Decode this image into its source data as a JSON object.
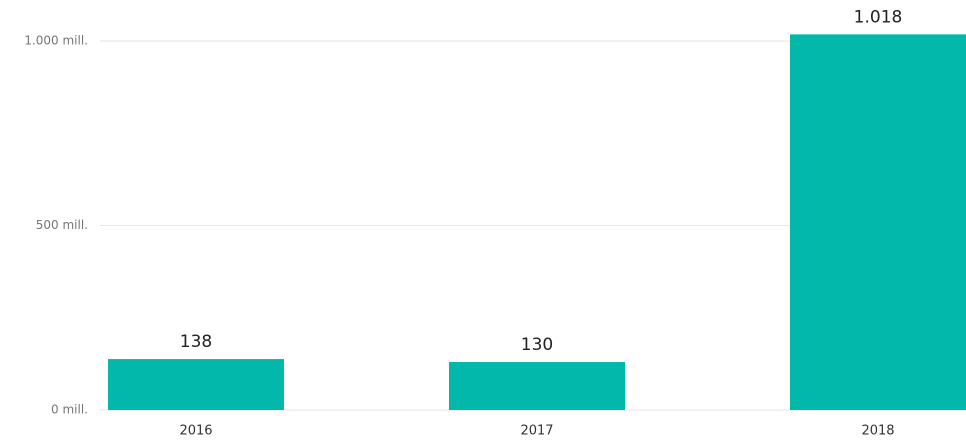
{
  "chart_data": {
    "type": "bar",
    "categories": [
      "2016",
      "2017",
      "2018"
    ],
    "values": [
      138,
      130,
      1018
    ],
    "value_labels": [
      "138",
      "130",
      "1.018"
    ],
    "color": "#01B8AA",
    "ylim": [
      0,
      1100
    ],
    "yticks": [
      {
        "value": 0,
        "label": "0 mill."
      },
      {
        "value": 500,
        "label": "500 mill."
      },
      {
        "value": 1000,
        "label": "1.000 mill."
      }
    ],
    "grid": true
  }
}
